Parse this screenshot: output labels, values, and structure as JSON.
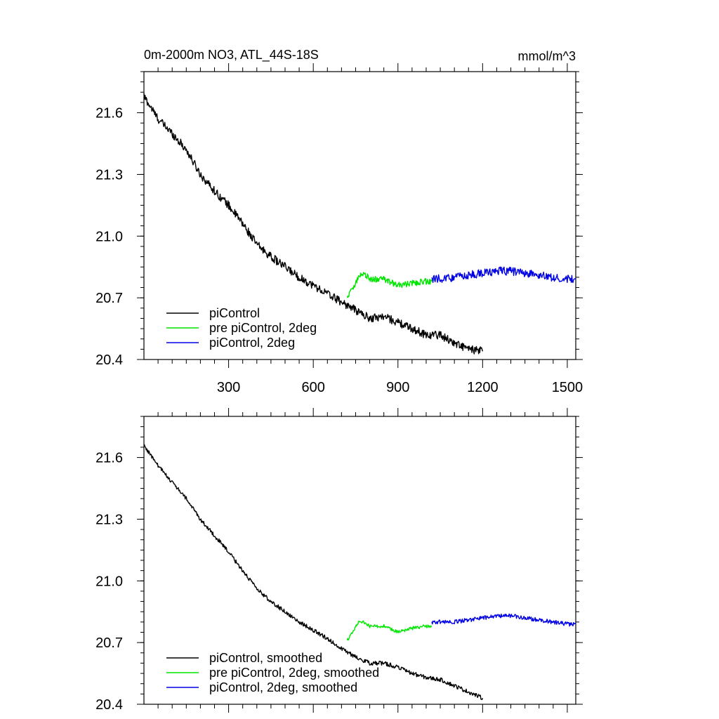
{
  "title": "0m-2000m NO3, ATL_44S-18S",
  "units": "mmol/m^3",
  "colors": {
    "piControl": "#000000",
    "pre_piControl_2deg": "#00e600",
    "piControl_2deg": "#0000e6"
  },
  "chart_data": [
    {
      "type": "line",
      "panel": "top",
      "xlim": [
        0,
        1530
      ],
      "ylim": [
        20.4,
        21.8
      ],
      "xticks": [
        300,
        600,
        900,
        1200,
        1500
      ],
      "yticks": [
        20.4,
        20.7,
        21.0,
        21.3,
        21.6
      ],
      "ytick_labels": [
        "20.4",
        "20.7",
        "21.0",
        "21.3",
        "21.6"
      ],
      "xtick_labels": [
        "300",
        "600",
        "900",
        "1200",
        "1500"
      ],
      "legend_position": "bottom-left",
      "series": [
        {
          "name": "piControl",
          "color": "#000000",
          "x": [
            0,
            50,
            100,
            150,
            200,
            250,
            300,
            350,
            400,
            450,
            500,
            550,
            600,
            650,
            700,
            750,
            800,
            850,
            900,
            950,
            1000,
            1050,
            1100,
            1150,
            1200
          ],
          "y": [
            21.68,
            21.57,
            21.5,
            21.42,
            21.3,
            21.22,
            21.15,
            21.06,
            20.96,
            20.9,
            20.85,
            20.8,
            20.76,
            20.72,
            20.68,
            20.64,
            20.6,
            20.61,
            20.58,
            20.55,
            20.52,
            20.52,
            20.48,
            20.45,
            20.44
          ],
          "noise": 0.02
        },
        {
          "name": "pre piControl, 2deg",
          "color": "#00e600",
          "x": [
            720,
            740,
            760,
            780,
            800,
            850,
            900,
            950,
            1000,
            1020
          ],
          "y": [
            20.7,
            20.75,
            20.8,
            20.82,
            20.79,
            20.79,
            20.76,
            20.77,
            20.78,
            20.78
          ],
          "noise": 0.015
        },
        {
          "name": "piControl, 2deg",
          "color": "#0000e6",
          "x": [
            1020,
            1100,
            1150,
            1200,
            1250,
            1300,
            1350,
            1400,
            1450,
            1500,
            1530
          ],
          "y": [
            20.79,
            20.8,
            20.81,
            20.82,
            20.83,
            20.83,
            20.82,
            20.81,
            20.8,
            20.79,
            20.79
          ],
          "noise": 0.02
        }
      ]
    },
    {
      "type": "line",
      "panel": "bottom",
      "xlim": [
        0,
        1530
      ],
      "ylim": [
        20.4,
        21.8
      ],
      "xticks": [
        300,
        600,
        900,
        1200,
        1500
      ],
      "yticks": [
        20.4,
        20.7,
        21.0,
        21.3,
        21.6
      ],
      "ytick_labels": [
        "20.4",
        "20.7",
        "21.0",
        "21.3",
        "21.6"
      ],
      "legend_position": "bottom-left",
      "series": [
        {
          "name": "piControl, smoothed",
          "color": "#000000",
          "x": [
            0,
            50,
            100,
            150,
            200,
            250,
            300,
            350,
            400,
            450,
            500,
            550,
            600,
            650,
            700,
            750,
            800,
            850,
            900,
            950,
            1000,
            1050,
            1100,
            1150,
            1200
          ],
          "y": [
            21.66,
            21.56,
            21.48,
            21.4,
            21.3,
            21.22,
            21.14,
            21.05,
            20.96,
            20.9,
            20.85,
            20.8,
            20.76,
            20.72,
            20.67,
            20.63,
            20.6,
            20.6,
            20.58,
            20.55,
            20.53,
            20.52,
            20.49,
            20.46,
            20.43
          ],
          "noise": 0.01
        },
        {
          "name": "pre piControl, 2deg, smoothed",
          "color": "#00e600",
          "x": [
            720,
            740,
            760,
            780,
            800,
            850,
            900,
            950,
            1000,
            1020
          ],
          "y": [
            20.71,
            20.75,
            20.8,
            20.8,
            20.78,
            20.78,
            20.75,
            20.77,
            20.78,
            20.78
          ],
          "noise": 0.008
        },
        {
          "name": "piControl, 2deg, smoothed",
          "color": "#0000e6",
          "x": [
            1020,
            1100,
            1150,
            1200,
            1250,
            1300,
            1350,
            1400,
            1450,
            1500,
            1530
          ],
          "y": [
            20.8,
            20.8,
            20.81,
            20.82,
            20.83,
            20.83,
            20.82,
            20.81,
            20.8,
            20.79,
            20.79
          ],
          "noise": 0.01
        }
      ]
    }
  ]
}
